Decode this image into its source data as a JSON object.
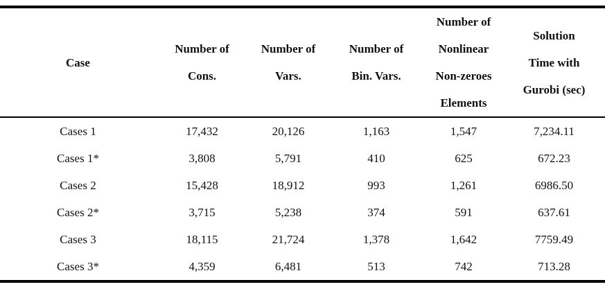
{
  "table": {
    "columns": [
      {
        "key": "case",
        "label_lines": [
          "Case"
        ]
      },
      {
        "key": "cons",
        "label_lines": [
          "Number of",
          "Cons."
        ]
      },
      {
        "key": "vars",
        "label_lines": [
          "Number of",
          "Vars."
        ]
      },
      {
        "key": "bin_vars",
        "label_lines": [
          "Number of",
          "Bin. Vars."
        ]
      },
      {
        "key": "nonlinear_nonzeroes",
        "label_lines": [
          "Number of",
          "Nonlinear",
          "Non-zeroes",
          "Elements"
        ]
      },
      {
        "key": "solution_time",
        "label_lines": [
          "Solution",
          "Time with",
          "Gurobi (sec)"
        ]
      }
    ],
    "rows": [
      {
        "case": "Cases 1",
        "cons": "17,432",
        "vars": "20,126",
        "bin_vars": "1,163",
        "nonlinear_nonzeroes": "1,547",
        "solution_time": "7,234.11"
      },
      {
        "case": "Cases 1*",
        "cons": "3,808",
        "vars": "5,791",
        "bin_vars": "410",
        "nonlinear_nonzeroes": "625",
        "solution_time": "672.23"
      },
      {
        "case": "Cases 2",
        "cons": "15,428",
        "vars": "18,912",
        "bin_vars": "993",
        "nonlinear_nonzeroes": "1,261",
        "solution_time": "6986.50"
      },
      {
        "case": "Cases 2*",
        "cons": "3,715",
        "vars": "5,238",
        "bin_vars": "374",
        "nonlinear_nonzeroes": "591",
        "solution_time": "637.61"
      },
      {
        "case": "Cases 3",
        "cons": "18,115",
        "vars": "21,724",
        "bin_vars": "1,378",
        "nonlinear_nonzeroes": "1,642",
        "solution_time": "7759.49"
      },
      {
        "case": "Cases 3*",
        "cons": "4,359",
        "vars": "6,481",
        "bin_vars": "513",
        "nonlinear_nonzeroes": "742",
        "solution_time": "713.28"
      }
    ]
  }
}
